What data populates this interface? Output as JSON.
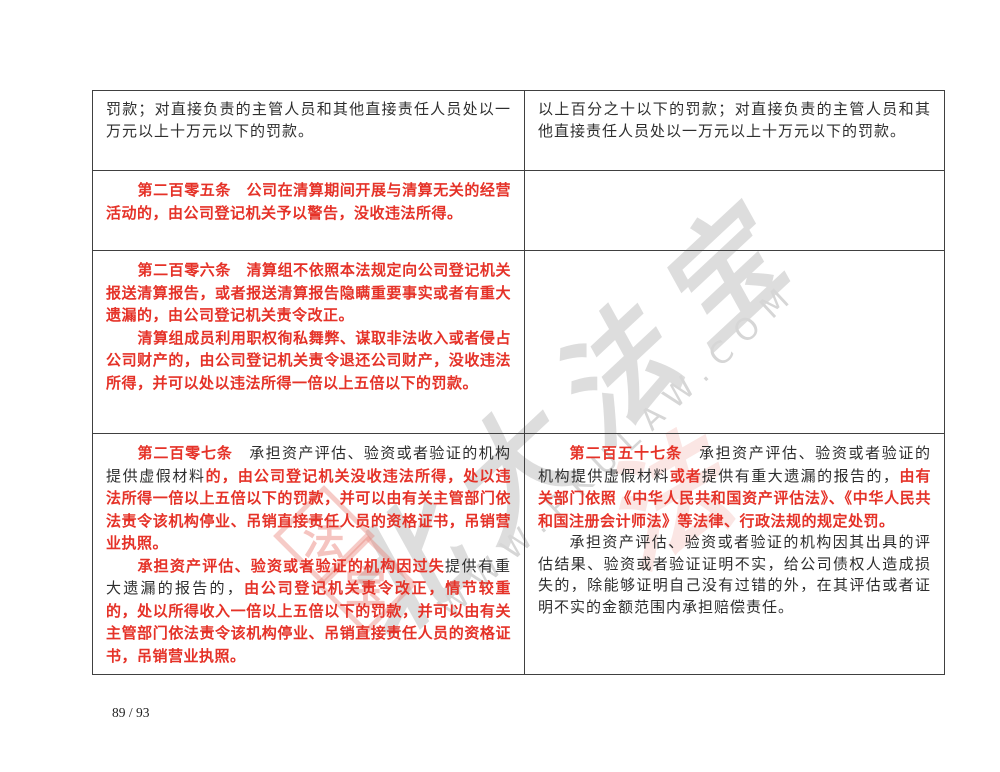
{
  "page": {
    "footer_page_label": "89 / 93"
  },
  "colors": {
    "revision_red": "#e53228",
    "body_text": "#2e2e2e",
    "table_border": "#404040",
    "watermark_gray": "#dadada",
    "watermark_pink": "#e87d73"
  },
  "watermark": {
    "calligraphy_text": "北大法宝",
    "url_letters": "WWW.PKULAW.COM",
    "seal_char_1": "法",
    "seal_char_2": "宝",
    "script_char": "法"
  },
  "table": {
    "rows": [
      {
        "left": [
          {
            "indent": false,
            "runs": [
              {
                "s": "plain",
                "t": "罚款；对直接负责的主管人员和其他直接责任人员处以一万元以上十万元以下的罚款。"
              }
            ]
          }
        ],
        "right": [
          {
            "indent": false,
            "runs": [
              {
                "s": "plain",
                "t": "以上百分之十以下的罚款；对直接负责的主管人员和其他直接责任人员处以一万元以上十万元以下的罚款。"
              }
            ]
          }
        ]
      },
      {
        "left": [
          {
            "indent": true,
            "runs": [
              {
                "s": "red",
                "t": "第二百零五条　公司在清算期间开展与清算无关的经营活动的，由公司登记机关予以警告，没收违法所得。"
              }
            ]
          }
        ],
        "right": []
      },
      {
        "left": [
          {
            "indent": true,
            "runs": [
              {
                "s": "red",
                "t": "第二百零六条　清算组不依照本法规定向公司登记机关报送清算报告，或者报送清算报告隐瞒重要事实或者有重大遗漏的，由公司登记机关责令改正。"
              }
            ]
          },
          {
            "indent": true,
            "runs": [
              {
                "s": "red",
                "t": "清算组成员利用职权徇私舞弊、谋取非法收入或者侵占公司财产的，由公司登记机关责令退还公司财产，没收违法所得，并可以处以违法所得一倍以上五倍以下的罚款。"
              }
            ]
          }
        ],
        "right": []
      },
      {
        "left": [
          {
            "indent": true,
            "runs": [
              {
                "s": "red",
                "t": "第二百零七条"
              },
              {
                "s": "plain",
                "t": "　承担资产评估、验资或者验证的机构提供虚假材料"
              },
              {
                "s": "red",
                "t": "的，由公司登记机关没收违法所得，处以违法所得一倍以上五倍以下的罚款，并可以由有关主管部门依法责令该机构停业、吊销直接责任人员的资格证书，吊销营业执照。"
              }
            ]
          },
          {
            "indent": true,
            "runs": [
              {
                "s": "red",
                "t": "承担资产评估、验资或者验证的机构因过失"
              },
              {
                "s": "plain",
                "t": "提供有重大遗漏的报告的，"
              },
              {
                "s": "red",
                "t": "由公司登记机关责令改正，情节较重的，处以所得收入一倍以上五倍以下的罚款，并可以由有关主管部门依法责令该机构停业、吊销直接责任人员的资格证书，吊销营业执照。"
              }
            ]
          }
        ],
        "right": [
          {
            "indent": true,
            "runs": [
              {
                "s": "red",
                "t": "第二百五十七条"
              },
              {
                "s": "plain",
                "t": "　承担资产评估、验资或者验证的机构提供虚假材料"
              },
              {
                "s": "red",
                "t": "或者"
              },
              {
                "s": "plain",
                "t": "提供有重大遗漏的报告的，"
              },
              {
                "s": "red",
                "t": "由有关部门依照《中华人民共和国资产评估法》、《中华人民共和国注册会计师法》等法律、行政法规的规定处罚。"
              }
            ]
          },
          {
            "indent": true,
            "runs": [
              {
                "s": "plain",
                "t": "承担资产评估、验资或者验证的机构因其出具的评估结果、验资或者验证证明不实，给公司债权人造成损失的，除能够证明自己没有过错的外，在其评估或者证明不实的金额范围内承担赔偿责任。"
              }
            ]
          }
        ]
      }
    ]
  }
}
